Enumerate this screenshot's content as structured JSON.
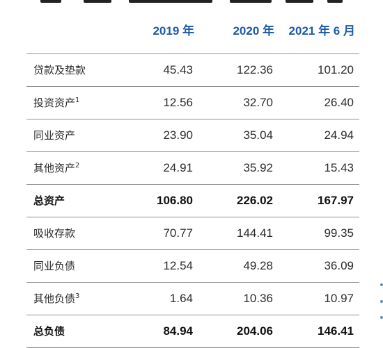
{
  "header": {
    "columns": [
      "2019 年",
      "2020 年",
      "2021 年 6 月"
    ]
  },
  "rows": [
    {
      "label": "贷款及垫款",
      "sup": "",
      "values": [
        "45.43",
        "122.36",
        "101.20"
      ],
      "bold": false
    },
    {
      "label": "投资资产",
      "sup": "1",
      "values": [
        "12.56",
        "32.70",
        "26.40"
      ],
      "bold": false
    },
    {
      "label": "同业资产",
      "sup": "",
      "values": [
        "23.90",
        "35.04",
        "24.94"
      ],
      "bold": false
    },
    {
      "label": "其他资产",
      "sup": "2",
      "values": [
        "24.91",
        "35.92",
        "15.43"
      ],
      "bold": false
    },
    {
      "label": "总资产",
      "sup": "",
      "values": [
        "106.80",
        "226.02",
        "167.97"
      ],
      "bold": true
    },
    {
      "label": "吸收存款",
      "sup": "",
      "values": [
        "70.77",
        "144.41",
        "99.35"
      ],
      "bold": false
    },
    {
      "label": "同业负债",
      "sup": "",
      "values": [
        "12.54",
        "49.28",
        "36.09"
      ],
      "bold": false
    },
    {
      "label": "其他负债",
      "sup": "3",
      "values": [
        "1.64",
        "10.36",
        "10.97"
      ],
      "bold": false
    },
    {
      "label": "总负债",
      "sup": "",
      "values": [
        "84.94",
        "204.06",
        "146.41"
      ],
      "bold": true
    }
  ],
  "colors": {
    "header_text": "#1f5aa6",
    "rule": "#8f8f8f"
  }
}
